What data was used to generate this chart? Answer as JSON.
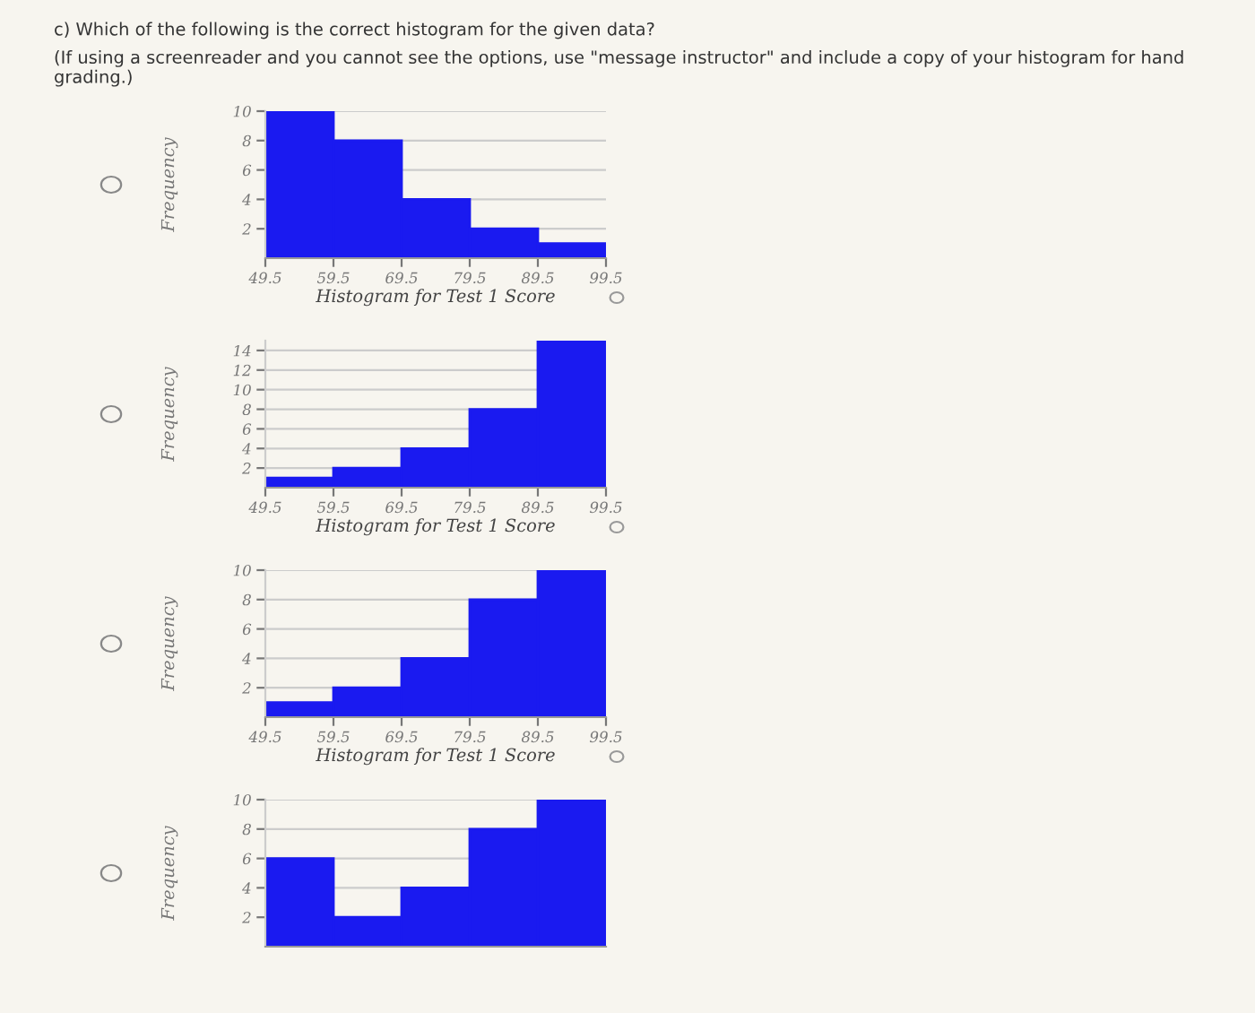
{
  "chart_data": [
    {
      "type": "histogram",
      "title": "c) Which of the following is the correct histogram for the given data?",
      "subtitle": "(If using a screenreader and you cannot see the options, use \"message instructor\" and include a copy of your histogram for hand grading.)",
      "xlabel": "Histogram for Test 1 Score",
      "ylabel": "Frequency",
      "bins": [
        49.5,
        59.5,
        69.5,
        79.5,
        89.5,
        99.5
      ],
      "values": [
        10,
        8,
        4,
        2,
        1
      ],
      "color": "#1a1af0",
      "xlim": [
        49.5,
        99.5
      ],
      "xticks": [
        49.5,
        59.5,
        69.5,
        79.5,
        89.5,
        99.5
      ],
      "ylim": [
        0,
        10
      ],
      "yticks": [
        2,
        4,
        6,
        8,
        10
      ],
      "grid": "y"
    },
    {
      "type": "histogram",
      "xlabel": "Histogram for Test 1 Score",
      "ylabel": "Frequency",
      "bins": [
        49.5,
        59.5,
        69.5,
        79.5,
        89.5,
        99.5
      ],
      "values": [
        1,
        2,
        4,
        8,
        15
      ],
      "color": "#1a1af0",
      "xlim": [
        49.5,
        99.5
      ],
      "xticks": [
        49.5,
        59.5,
        69.5,
        79.5,
        89.5,
        99.5
      ],
      "ylim": [
        0,
        15
      ],
      "yticks": [
        2,
        4,
        6,
        8,
        10,
        12,
        14
      ],
      "grid": "y"
    },
    {
      "type": "histogram",
      "xlabel": "Histogram for Test 1 Score",
      "ylabel": "Frequency",
      "bins": [
        49.5,
        59.5,
        69.5,
        79.5,
        89.5,
        99.5
      ],
      "values": [
        1,
        2,
        4,
        8,
        10
      ],
      "color": "#1a1af0",
      "xlim": [
        49.5,
        99.5
      ],
      "xticks": [
        49.5,
        59.5,
        69.5,
        79.5,
        89.5,
        99.5
      ],
      "ylim": [
        0,
        10
      ],
      "yticks": [
        2,
        4,
        6,
        8,
        10
      ],
      "grid": "y"
    },
    {
      "type": "histogram",
      "ylabel": "Frequency",
      "bins": [
        49.5,
        59.5,
        69.5,
        79.5,
        89.5,
        99.5
      ],
      "values": [
        6,
        2,
        4,
        8,
        10
      ],
      "color": "#1a1af0",
      "xlim": [
        49.5,
        99.5
      ],
      "ylim": [
        0,
        10
      ],
      "yticks": [
        2,
        4,
        6,
        8,
        10
      ],
      "grid": "y",
      "tick_labels": "y"
    }
  ]
}
